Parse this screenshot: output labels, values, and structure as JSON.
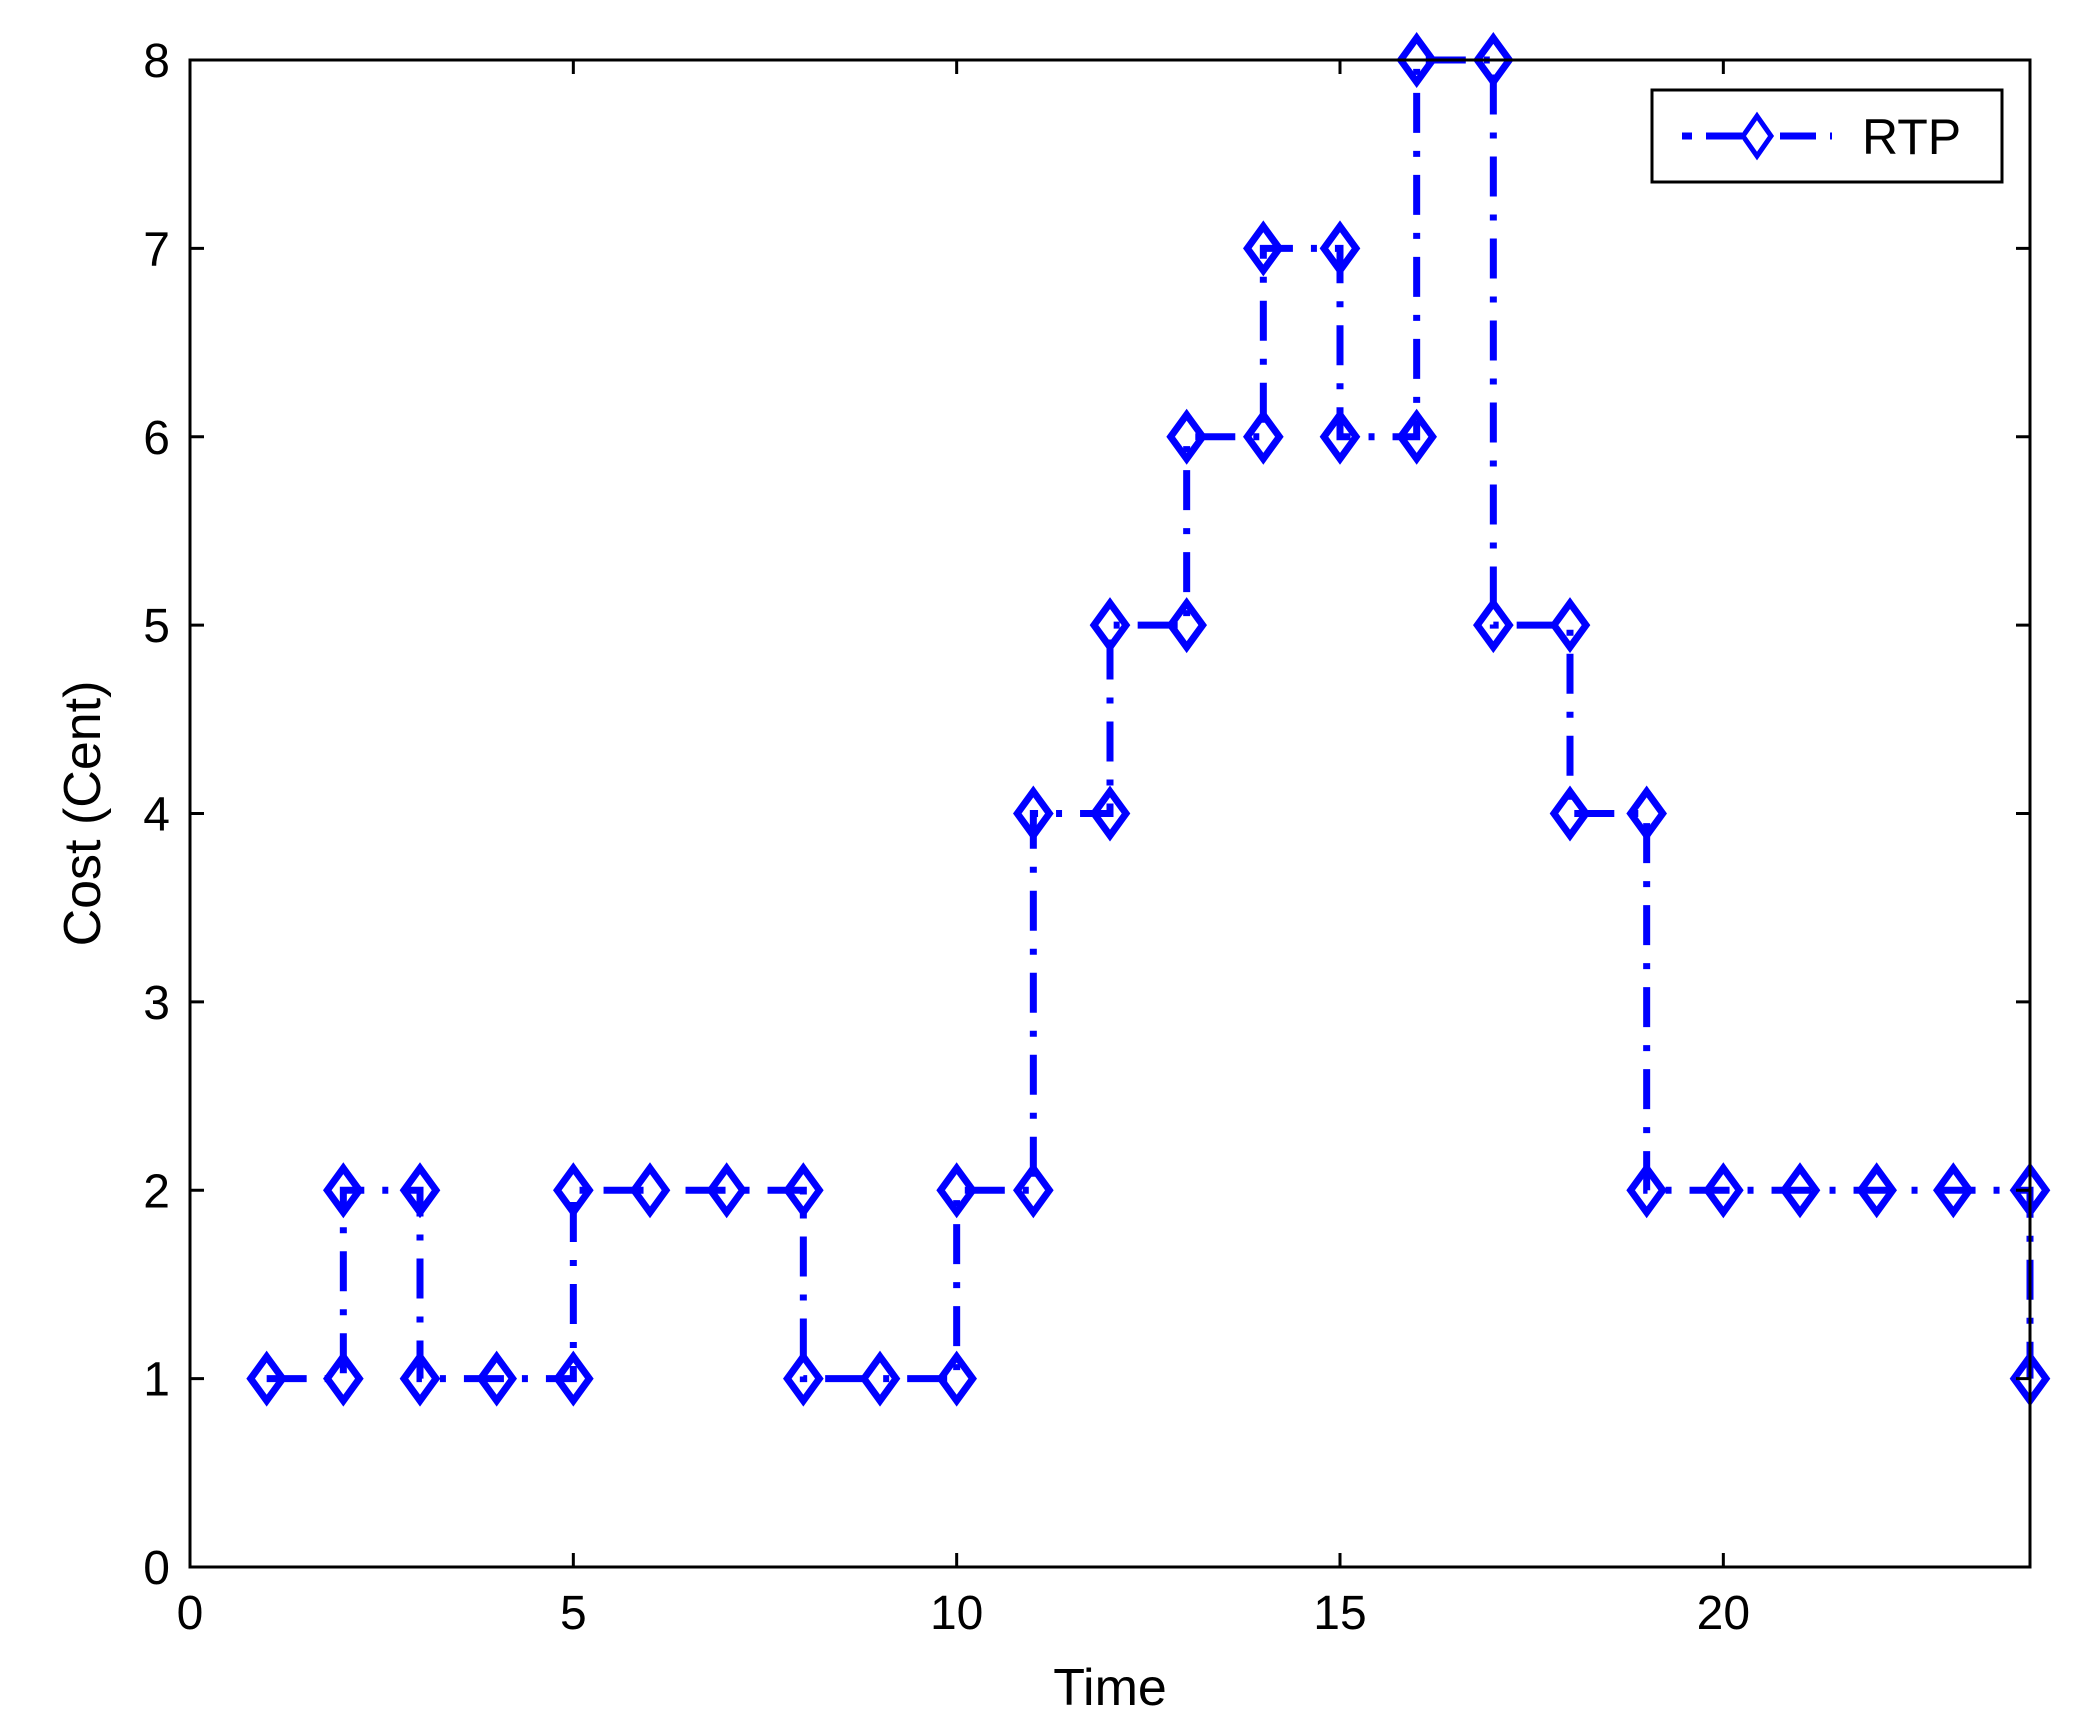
{
  "chart_data": {
    "type": "line",
    "step": "post",
    "xlabel": "Time",
    "ylabel": "Cost (Cent)",
    "xlim": [
      0,
      24
    ],
    "ylim": [
      0,
      8
    ],
    "xticks": [
      0,
      5,
      10,
      15,
      20
    ],
    "yticks": [
      0,
      1,
      2,
      3,
      4,
      5,
      6,
      7,
      8
    ],
    "grid": false,
    "legend_position": "top-right",
    "series": [
      {
        "name": "RTP",
        "color": "#0000ff",
        "line_style": "dash-dot",
        "marker": "diamond-open",
        "x": [
          1,
          2,
          3,
          4,
          5,
          6,
          7,
          8,
          9,
          10,
          11,
          12,
          13,
          14,
          15,
          16,
          17,
          18,
          19,
          20,
          21,
          22,
          23,
          24
        ],
        "y": [
          1,
          2,
          1,
          1,
          2,
          2,
          2,
          1,
          1,
          2,
          4,
          5,
          6,
          7,
          6,
          8,
          5,
          4,
          2,
          2,
          2,
          2,
          2,
          1
        ]
      }
    ]
  }
}
